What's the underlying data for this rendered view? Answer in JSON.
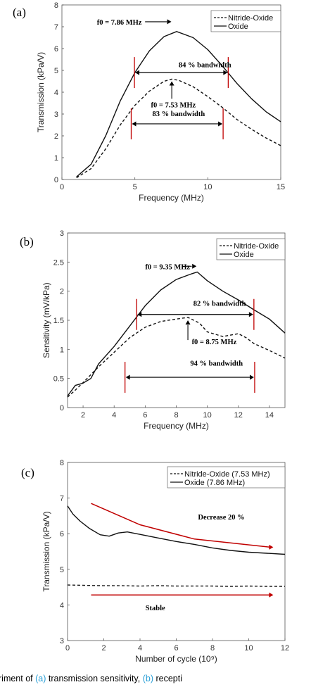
{
  "chart_data": [
    {
      "type": "line",
      "panel_label": "(a)",
      "xlabel": "Frequency (MHz)",
      "ylabel": "Transmission (kPa/V)",
      "xlim": [
        0,
        15
      ],
      "ylim": [
        0,
        8
      ],
      "xticks": [
        0,
        5,
        10,
        15
      ],
      "yticks": [
        0,
        1,
        2,
        3,
        4,
        5,
        6,
        7,
        8
      ],
      "legend_position": "top-right",
      "series": [
        {
          "name": "Nitride-Oxide",
          "style": "dashed",
          "x": [
            1.0,
            2.0,
            3.0,
            4.0,
            5.0,
            6.0,
            7.0,
            7.53,
            8.0,
            9.0,
            10.0,
            11.0,
            12.0,
            13.0,
            14.0,
            15.0
          ],
          "y": [
            0.08,
            0.5,
            1.4,
            2.5,
            3.4,
            4.05,
            4.5,
            4.6,
            4.55,
            4.25,
            3.8,
            3.3,
            2.75,
            2.3,
            1.9,
            1.55
          ]
        },
        {
          "name": "Oxide",
          "style": "solid",
          "x": [
            1.0,
            2.0,
            3.0,
            4.0,
            5.0,
            6.0,
            7.0,
            7.86,
            9.0,
            10.0,
            11.0,
            12.0,
            13.0,
            14.0,
            15.0
          ],
          "y": [
            0.12,
            0.7,
            2.0,
            3.6,
            4.9,
            5.9,
            6.55,
            6.78,
            6.5,
            5.95,
            5.2,
            4.4,
            3.7,
            3.1,
            2.65
          ]
        }
      ],
      "annotations": [
        {
          "text": "f0 = 7.86 MHz",
          "x": 2.4,
          "y": 7.1
        },
        {
          "text": "84 % bandwidth",
          "x": 8.0,
          "y": 5.15
        },
        {
          "text": "f0 = 7.53 MHz",
          "x": 6.1,
          "y": 3.3
        },
        {
          "text": "83 % bandwidth",
          "x": 6.2,
          "y": 2.9
        }
      ],
      "bandwidth_markers": [
        {
          "x1": 4.97,
          "x2": 11.4,
          "y": 4.9
        },
        {
          "x1": 4.75,
          "x2": 11.05,
          "y": 2.55
        }
      ]
    },
    {
      "type": "line",
      "panel_label": "(b)",
      "xlabel": "Frequency (MHz)",
      "ylabel": "Sensitivity (mV/kPa)",
      "xlim": [
        1,
        15
      ],
      "ylim": [
        0,
        3
      ],
      "xticks": [
        2,
        4,
        6,
        8,
        10,
        12,
        14
      ],
      "yticks": [
        0,
        0.5,
        1,
        1.5,
        2,
        2.5,
        3
      ],
      "legend_position": "top-right",
      "series": [
        {
          "name": "Nitride-Oxide",
          "style": "dashed",
          "x": [
            1.0,
            1.5,
            2.0,
            3.0,
            4.0,
            5.0,
            6.0,
            7.0,
            8.0,
            8.75,
            9.5,
            10.0,
            11.0,
            12.0,
            12.5,
            13.0,
            14.0,
            15.0
          ],
          "y": [
            0.18,
            0.3,
            0.43,
            0.7,
            0.95,
            1.2,
            1.38,
            1.48,
            1.52,
            1.55,
            1.45,
            1.3,
            1.22,
            1.27,
            1.2,
            1.1,
            0.98,
            0.85
          ]
        },
        {
          "name": "Oxide",
          "style": "solid",
          "x": [
            1.0,
            1.5,
            2.0,
            2.5,
            3.0,
            4.0,
            5.0,
            6.0,
            7.0,
            8.0,
            9.0,
            9.35,
            10.0,
            11.0,
            12.0,
            13.0,
            14.0,
            15.0
          ],
          "y": [
            0.2,
            0.38,
            0.42,
            0.5,
            0.75,
            1.05,
            1.4,
            1.75,
            2.02,
            2.2,
            2.3,
            2.33,
            2.18,
            2.0,
            1.85,
            1.68,
            1.52,
            1.28
          ]
        }
      ],
      "annotations": [
        {
          "text": "f0 = 9.35 MHz",
          "x": 6.0,
          "y": 2.38
        },
        {
          "text": "82 % bandwidth",
          "x": 9.1,
          "y": 1.75
        },
        {
          "text": "f0 = 8.75 MHz",
          "x": 9.0,
          "y": 1.09
        },
        {
          "text": "94 % bandwidth",
          "x": 8.9,
          "y": 0.72
        }
      ],
      "bandwidth_markers": [
        {
          "x1": 5.45,
          "x2": 13.0,
          "y": 1.6
        },
        {
          "x1": 4.7,
          "x2": 13.05,
          "y": 0.52
        }
      ]
    },
    {
      "type": "line",
      "panel_label": "(c)",
      "xlabel": "Number of cycle (10⁹)",
      "ylabel": "Transmission (kPa/V)",
      "xlim": [
        0,
        12
      ],
      "ylim": [
        3,
        8
      ],
      "xticks": [
        0,
        2,
        4,
        6,
        8,
        10,
        12
      ],
      "yticks": [
        3,
        4,
        5,
        6,
        7,
        8
      ],
      "legend_position": "top-right",
      "series": [
        {
          "name": "Nitride-Oxide (7.53 MHz)",
          "style": "dashed",
          "x": [
            0,
            1,
            2,
            3,
            4,
            5,
            6,
            7,
            8,
            9,
            10,
            11,
            12
          ],
          "y": [
            4.56,
            4.55,
            4.54,
            4.54,
            4.53,
            4.54,
            4.53,
            4.53,
            4.53,
            4.52,
            4.53,
            4.52,
            4.52
          ]
        },
        {
          "name": "Oxide (7.86 MHz)",
          "style": "solid",
          "x": [
            0,
            0.3,
            0.7,
            1.2,
            1.8,
            2.3,
            2.8,
            3.3,
            4.0,
            5.0,
            6.0,
            7.0,
            8.0,
            9.0,
            10.0,
            11.0,
            12.0
          ],
          "y": [
            6.78,
            6.55,
            6.35,
            6.15,
            5.97,
            5.93,
            6.02,
            6.05,
            5.98,
            5.88,
            5.78,
            5.7,
            5.6,
            5.53,
            5.48,
            5.45,
            5.42
          ]
        }
      ],
      "annotations": [
        {
          "text": "Decrease 20 %",
          "x": 7.2,
          "y": 6.4
        },
        {
          "text": "Stable",
          "x": 4.3,
          "y": 3.85
        }
      ],
      "trend_arrows": [
        {
          "x": [
            1.3,
            4.0,
            7.0,
            11.2
          ],
          "y": [
            6.85,
            6.25,
            5.85,
            5.62
          ]
        },
        {
          "x": [
            1.3,
            11.2
          ],
          "y": [
            4.28,
            4.28
          ]
        }
      ]
    }
  ],
  "caption": {
    "prefix": "riment of ",
    "a": "(a)",
    "middle": " transmission sensitivity, ",
    "b": "(b)",
    "suffix": " recepti"
  },
  "colors": {
    "curve": "#111111",
    "marker": "#c00000",
    "caption_link": "#2a9fd6"
  }
}
